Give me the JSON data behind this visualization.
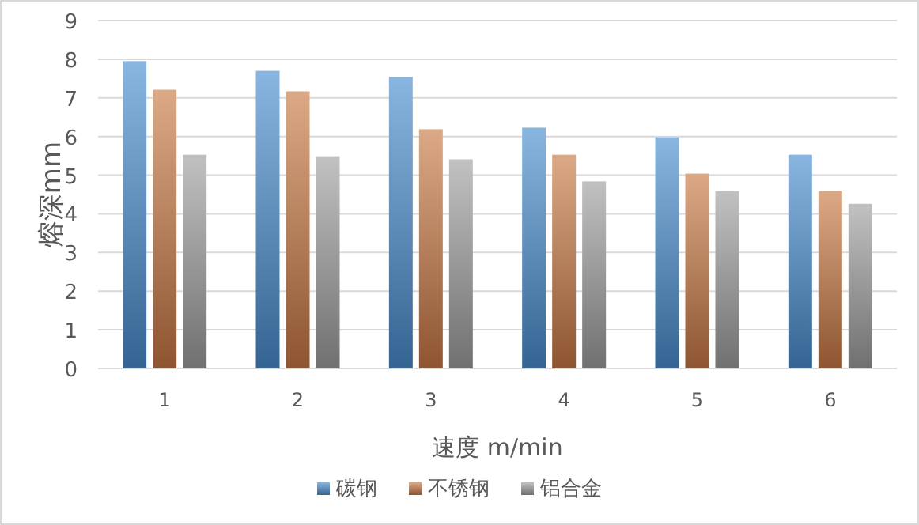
{
  "chart_data": {
    "type": "bar",
    "xlabel": "速度 m/min",
    "ylabel": "熔深mm",
    "categories": [
      "1",
      "2",
      "3",
      "4",
      "5",
      "6"
    ],
    "series": [
      {
        "name": "碳钢",
        "color": "#4a8fd0",
        "values": [
          7.95,
          7.7,
          7.54,
          6.23,
          5.98,
          5.53
        ]
      },
      {
        "name": "不锈钢",
        "color": "#c97a45",
        "values": [
          7.21,
          7.17,
          6.19,
          5.53,
          5.04,
          4.59
        ]
      },
      {
        "name": "铝合金",
        "color": "#a0a0a0",
        "values": [
          5.53,
          5.49,
          5.41,
          4.84,
          4.59,
          4.26
        ]
      }
    ],
    "ylim": [
      0,
      9
    ],
    "yticks": [
      0,
      1,
      2,
      3,
      4,
      5,
      6,
      7,
      8,
      9
    ],
    "grid": "y",
    "legend": "bottom"
  }
}
